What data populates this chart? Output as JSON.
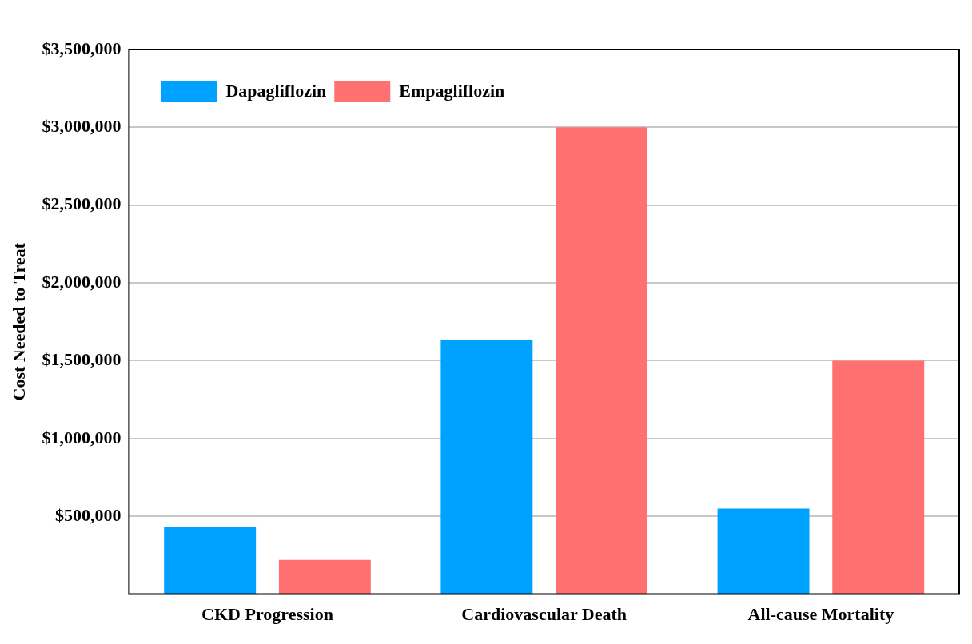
{
  "chart_data": {
    "type": "bar",
    "ylabel": "Cost Needed to Treat",
    "categories": [
      "CKD Progression",
      "Cardiovascular Death",
      "All-cause Mortality"
    ],
    "series": [
      {
        "name": "Dapagliflozin",
        "color": "#00a2ff",
        "values": [
          430000,
          1635000,
          550000
        ]
      },
      {
        "name": "Empagliflozin",
        "color": "#ff7070",
        "values": [
          220000,
          3000000,
          1500000
        ]
      }
    ],
    "ylim": [
      0,
      3500000
    ],
    "yticks": [
      {
        "value": 500000,
        "label": "$500,000"
      },
      {
        "value": 1000000,
        "label": "$1,000,000"
      },
      {
        "value": 1500000,
        "label": "$1,500,000"
      },
      {
        "value": 2000000,
        "label": "$2,000,000"
      },
      {
        "value": 2500000,
        "label": "$2,500,000"
      },
      {
        "value": 3000000,
        "label": "$3,000,000"
      },
      {
        "value": 3500000,
        "label": "$3,500,000"
      }
    ],
    "grid": "y",
    "legend": "top left"
  }
}
